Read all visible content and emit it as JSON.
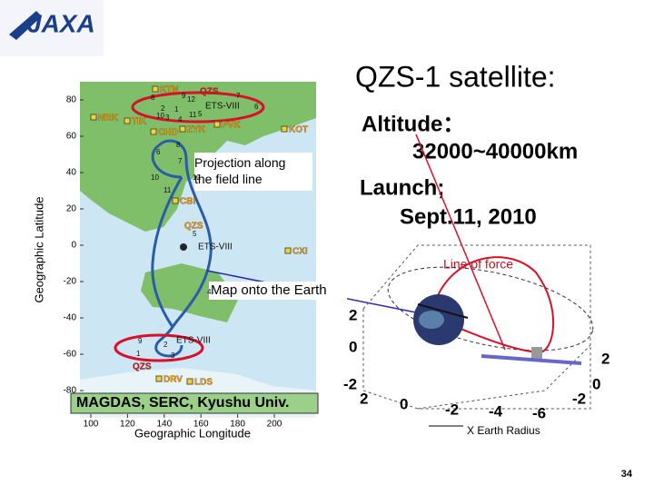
{
  "header": {
    "logo": "JAXA",
    "title": "QZS-1 satellite:"
  },
  "info": {
    "altitude_label": "Altitude：",
    "altitude_value": "32000~40000km",
    "launch_label": "Launch;",
    "launch_value": "Sept.11, 2010"
  },
  "annotations": {
    "line_of_force": "Line of force",
    "map_onto_earth": "Map onto the Earth",
    "projection": "Projection along the field line",
    "credit": "MAGDAS, SERC, Kyushu Univ."
  },
  "map": {
    "y_label": "Geographic Latitude",
    "x_label": "Geographic Longitude",
    "yticks": [
      80,
      60,
      40,
      20,
      0,
      -20,
      -40,
      -60,
      -80
    ],
    "xticks": [
      100,
      120,
      140,
      160,
      180,
      200
    ],
    "stations": [
      "KTN",
      "QZS",
      "ETS-VIII",
      "NRK",
      "TIK",
      "CHD",
      "ZYK",
      "PVK",
      "KOT",
      "CBI",
      "QZS",
      "ETS-VIII",
      "CXI",
      "QZS",
      "ETS-VIII",
      "DRV",
      "LDS"
    ],
    "hours": [
      "8",
      "9",
      "12",
      "1",
      "7",
      "2",
      "11",
      "10",
      "3",
      "6",
      "5",
      "4",
      "8",
      "7",
      "6",
      "10",
      "12",
      "11",
      "5",
      "4",
      "2",
      "3",
      "1",
      "9"
    ]
  },
  "plot3d": {
    "z_ticks": [
      2,
      0,
      -2
    ],
    "x_ticks": [
      2,
      0,
      -2,
      -4,
      -6
    ],
    "y_ticks": [
      2,
      0,
      -2
    ],
    "x_label": "X Earth Radius"
  },
  "footer": {
    "page": "34"
  }
}
